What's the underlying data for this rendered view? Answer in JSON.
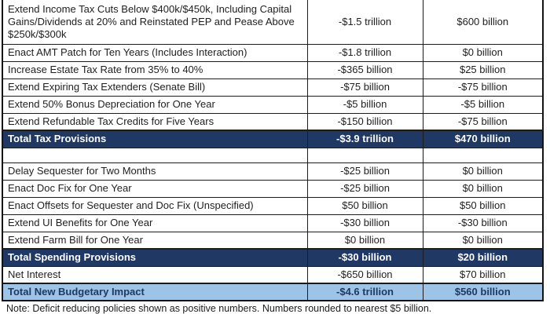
{
  "colors": {
    "total_row_bg": "#1f3864",
    "total_row_text": "#ffffff",
    "grand_total_bg": "#9dc3e6",
    "grand_total_text": "#1f3864",
    "border": "#1c1c1c",
    "body_text": "#1f1f1f"
  },
  "table": {
    "rows": [
      {
        "type": "item",
        "tall": true,
        "policy": "Extend Income Tax Cuts Below $400k/$450k, Including Capital Gains/Dividends at 20% and Reinstated PEP and Pease Above $250k/$300k",
        "ten_year_cost": "-$1.5 trillion",
        "vs_current_law": "$600 billion"
      },
      {
        "type": "item",
        "tall": false,
        "policy": "Enact AMT Patch for Ten Years (Includes Interaction)",
        "ten_year_cost": "-$1.8 trillion",
        "vs_current_law": "$0 billion"
      },
      {
        "type": "item",
        "tall": false,
        "policy": "Increase Estate Tax Rate from 35% to 40%",
        "ten_year_cost": "-$365 billion",
        "vs_current_law": "$25 billion"
      },
      {
        "type": "item",
        "tall": false,
        "policy": "Extend Expiring Tax Extenders (Senate Bill)",
        "ten_year_cost": "-$75 billion",
        "vs_current_law": "-$75 billion"
      },
      {
        "type": "item",
        "tall": false,
        "policy": "Extend 50% Bonus Depreciation for One Year",
        "ten_year_cost": "-$5 billion",
        "vs_current_law": "-$5 billion"
      },
      {
        "type": "item",
        "tall": false,
        "policy": "Extend Refundable Tax Credits for Five Years",
        "ten_year_cost": "-$150 billion",
        "vs_current_law": "-$75 billion"
      },
      {
        "type": "total",
        "tall": false,
        "policy": "Total Tax Provisions",
        "ten_year_cost": "-$3.9 trillion",
        "vs_current_law": "$470 billion"
      },
      {
        "type": "spacer",
        "tall": false,
        "policy": "",
        "ten_year_cost": "",
        "vs_current_law": ""
      },
      {
        "type": "item",
        "tall": false,
        "policy": "Delay Sequester for Two Months",
        "ten_year_cost": "-$25 billion",
        "vs_current_law": "$0 billion"
      },
      {
        "type": "item",
        "tall": false,
        "policy": "Enact Doc Fix for One Year",
        "ten_year_cost": "-$25 billion",
        "vs_current_law": "$0 billion"
      },
      {
        "type": "item",
        "tall": false,
        "policy": "Enact Offsets for Sequester and Doc Fix (Unspecified)",
        "ten_year_cost": "$50 billion",
        "vs_current_law": "$50 billion"
      },
      {
        "type": "item",
        "tall": false,
        "policy": "Extend UI Benefits for One Year",
        "ten_year_cost": "-$30 billion",
        "vs_current_law": "-$30 billion"
      },
      {
        "type": "item",
        "tall": false,
        "policy": "Extend Farm Bill for One Year",
        "ten_year_cost": "$0 billion",
        "vs_current_law": "$0 billion"
      },
      {
        "type": "total",
        "tall": false,
        "policy": "Total Spending Provisions",
        "ten_year_cost": "-$30 billion",
        "vs_current_law": "$20 billion"
      },
      {
        "type": "item",
        "tall": false,
        "policy": "Net Interest",
        "ten_year_cost": "-$650 billion",
        "vs_current_law": "$70 billion"
      },
      {
        "type": "grand_total",
        "tall": false,
        "policy": "Total New Budgetary Impact",
        "ten_year_cost": "-$4.6 trillion",
        "vs_current_law": "$560 billion"
      }
    ]
  },
  "note": "Note: Deficit reducing policies shown as positive numbers. Numbers rounded to nearest $5 billion."
}
